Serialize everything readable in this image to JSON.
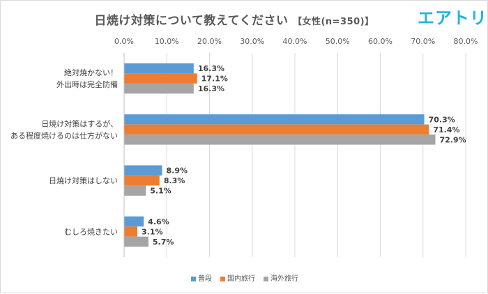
{
  "brand": {
    "logo_text": "エアトリ",
    "color": "#1fb3e6"
  },
  "chart_data": {
    "type": "bar",
    "orientation": "horizontal",
    "title": "日焼け対策について教えてください",
    "subtitle": "【女性(n=350)】",
    "categories": [
      [
        "絶対焼かない！",
        "外出時は完全防備"
      ],
      [
        "日焼け対策はするが、",
        "ある程度焼けるのは仕方がない"
      ],
      [
        "日焼け対策はしない"
      ],
      [
        "むしろ焼きたい"
      ]
    ],
    "series": [
      {
        "name": "普段",
        "color": "#5b9bd5",
        "values": [
          16.3,
          70.3,
          8.9,
          4.6
        ]
      },
      {
        "name": "国内旅行",
        "color": "#ed7d31",
        "values": [
          17.1,
          71.4,
          8.3,
          3.1
        ]
      },
      {
        "name": "海外旅行",
        "color": "#a5a5a5",
        "values": [
          16.3,
          72.9,
          5.1,
          5.7
        ]
      }
    ],
    "xlim": [
      0,
      80
    ],
    "x_ticks": [
      0,
      10,
      20,
      30,
      40,
      50,
      60,
      70,
      80
    ],
    "x_tick_format": "percent_1dp",
    "grid": true,
    "legend_position": "bottom"
  }
}
